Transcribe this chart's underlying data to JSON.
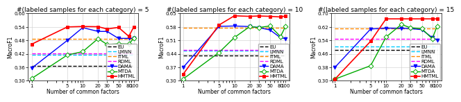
{
  "x_ticks": [
    1,
    5,
    10,
    20,
    30,
    50,
    80,
    100
  ],
  "subplots": [
    {
      "title": "#(labeled samples for each category) = 5",
      "ylim": [
        0.3,
        0.6
      ],
      "yticks": [
        0.3,
        0.36,
        0.42,
        0.48,
        0.54,
        0.6
      ],
      "ylabel": "MacroF1",
      "xlabel": "Number of common factors",
      "series": {
        "EU": {
          "y": [
            0.366,
            0.366,
            0.366,
            0.366,
            0.366,
            0.366,
            0.366,
            0.366
          ],
          "color": "#000000",
          "ls": "--",
          "marker": null,
          "lw": 1.0
        },
        "LMNN": {
          "y": [
            0.415,
            0.415,
            0.415,
            0.415,
            0.415,
            0.415,
            0.415,
            0.415
          ],
          "color": "#00ccff",
          "ls": "--",
          "marker": null,
          "lw": 1.0
        },
        "ITML": {
          "y": [
            0.488,
            0.488,
            0.488,
            0.488,
            0.488,
            0.488,
            0.488,
            0.488
          ],
          "color": "#ff8800",
          "ls": "--",
          "marker": null,
          "lw": 1.0
        },
        "RDML": {
          "y": [
            0.421,
            0.421,
            0.421,
            0.421,
            0.421,
            0.421,
            0.421,
            0.421
          ],
          "color": "#ff00ff",
          "ls": "--",
          "marker": null,
          "lw": 1.0
        },
        "DAMA": {
          "y": [
            0.356,
            0.48,
            0.537,
            0.52,
            0.52,
            0.489,
            0.489,
            0.489
          ],
          "color": "#0000ff",
          "ls": "-",
          "marker": "v",
          "lw": 1.0
        },
        "MTDA": {
          "y": [
            0.31,
            0.415,
            0.43,
            0.488,
            0.462,
            0.465,
            0.464,
            0.49
          ],
          "color": "#00aa00",
          "ls": "-",
          "marker": "D",
          "lw": 1.0
        },
        "HMTML": {
          "y": [
            0.463,
            0.54,
            0.542,
            0.541,
            0.531,
            0.538,
            0.498,
            0.541
          ],
          "color": "#ff0000",
          "ls": "-",
          "marker": "s",
          "lw": 1.2
        }
      }
    },
    {
      "title": "#(labeled samples for each category) = 10",
      "ylim": [
        0.3,
        0.65
      ],
      "yticks": [
        0.3,
        0.37,
        0.44,
        0.51,
        0.58,
        0.65
      ],
      "ylabel": "MacroF1",
      "xlabel": "Number of common factors",
      "series": {
        "EU": {
          "y": [
            0.432,
            0.432,
            0.432,
            0.432,
            0.432,
            0.432,
            0.432,
            0.432
          ],
          "color": "#000000",
          "ls": "--",
          "marker": null,
          "lw": 1.0
        },
        "LMNN": {
          "y": [
            0.456,
            0.456,
            0.456,
            0.456,
            0.456,
            0.456,
            0.456,
            0.456
          ],
          "color": "#00ccff",
          "ls": "--",
          "marker": null,
          "lw": 1.0
        },
        "ITML": {
          "y": [
            0.576,
            0.576,
            0.576,
            0.576,
            0.576,
            0.576,
            0.576,
            0.576
          ],
          "color": "#ff8800",
          "ls": "--",
          "marker": null,
          "lw": 1.0
        },
        "RDML": {
          "y": [
            0.46,
            0.46,
            0.46,
            0.46,
            0.46,
            0.46,
            0.46,
            0.46
          ],
          "color": "#ff00ff",
          "ls": "--",
          "marker": null,
          "lw": 1.0
        },
        "DAMA": {
          "y": [
            0.37,
            0.583,
            0.585,
            0.582,
            0.577,
            0.564,
            0.524,
            0.519
          ],
          "color": "#0000ff",
          "ls": "-",
          "marker": "v",
          "lw": 1.0
        },
        "MTDA": {
          "y": [
            0.31,
            0.447,
            0.525,
            0.582,
            0.577,
            0.585,
            0.53,
            0.583
          ],
          "color": "#00aa00",
          "ls": "-",
          "marker": "D",
          "lw": 1.0
        },
        "HMTML": {
          "y": [
            0.335,
            0.59,
            0.638,
            0.635,
            0.637,
            0.635,
            0.632,
            0.637
          ],
          "color": "#ff0000",
          "ls": "-",
          "marker": "s",
          "lw": 1.2
        }
      }
    },
    {
      "title": "#(labeled samples for each category) = 15",
      "ylim": [
        0.3,
        0.7
      ],
      "yticks": [
        0.3,
        0.38,
        0.46,
        0.54,
        0.62,
        0.7
      ],
      "ylabel": "MacroF1",
      "xlabel": "Number of common factors",
      "series": {
        "EU": {
          "y": [
            0.482,
            0.482,
            0.482,
            0.482,
            0.482,
            0.482,
            0.482,
            0.482
          ],
          "color": "#000000",
          "ls": "--",
          "marker": null,
          "lw": 1.0
        },
        "LMNN": {
          "y": [
            0.502,
            0.502,
            0.502,
            0.502,
            0.502,
            0.502,
            0.502,
            0.502
          ],
          "color": "#00ccff",
          "ls": "--",
          "marker": null,
          "lw": 1.0
        },
        "ITML": {
          "y": [
            0.61,
            0.61,
            0.61,
            0.61,
            0.61,
            0.61,
            0.61,
            0.61
          ],
          "color": "#ff8800",
          "ls": "--",
          "marker": null,
          "lw": 1.0
        },
        "RDML": {
          "y": [
            0.549,
            0.549,
            0.549,
            0.549,
            0.549,
            0.549,
            0.549,
            0.549
          ],
          "color": "#ff00ff",
          "ls": "--",
          "marker": null,
          "lw": 1.0
        },
        "DAMA": {
          "y": [
            0.38,
            0.608,
            0.613,
            0.612,
            0.61,
            0.604,
            0.557,
            0.543
          ],
          "color": "#0000ff",
          "ls": "-",
          "marker": "v",
          "lw": 1.0
        },
        "MTDA": {
          "y": [
            0.31,
            0.39,
            0.56,
            0.635,
            0.615,
            0.61,
            0.55,
            0.625
          ],
          "color": "#00aa00",
          "ls": "-",
          "marker": "D",
          "lw": 1.0
        },
        "HMTML": {
          "y": [
            0.31,
            0.535,
            0.668,
            0.668,
            0.668,
            0.668,
            0.668,
            0.668
          ],
          "color": "#ff0000",
          "ls": "-",
          "marker": "s",
          "lw": 1.2
        }
      }
    }
  ],
  "legend_order": [
    "EU",
    "LMNN",
    "ITML",
    "RDML",
    "DAMA",
    "MTDA",
    "HMTML"
  ],
  "marker_size": 3.5,
  "open_markers": [
    "D"
  ],
  "title_fontsize": 6.5,
  "label_fontsize": 5.5,
  "tick_fontsize": 5.0,
  "legend_fontsize": 5.0
}
